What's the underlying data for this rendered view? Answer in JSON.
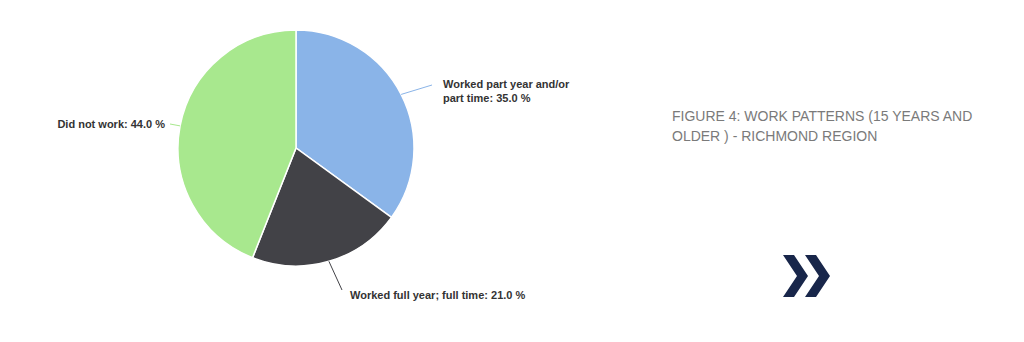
{
  "chart_data": {
    "type": "pie",
    "title": "FIGURE 4: WORK PATTERNS (15 YEARS AND OLDER ) - RICHMOND REGION",
    "categories": [
      "Worked part year and/or part time",
      "Worked full year; full time",
      "Did not work"
    ],
    "values": [
      35,
      21,
      44
    ],
    "value_labels": [
      "35.0 %",
      "21.0 %",
      "44.0 %"
    ],
    "colors": [
      "#8ab4e8",
      "#424247",
      "#a8e88e"
    ],
    "data_labels": true
  }
}
